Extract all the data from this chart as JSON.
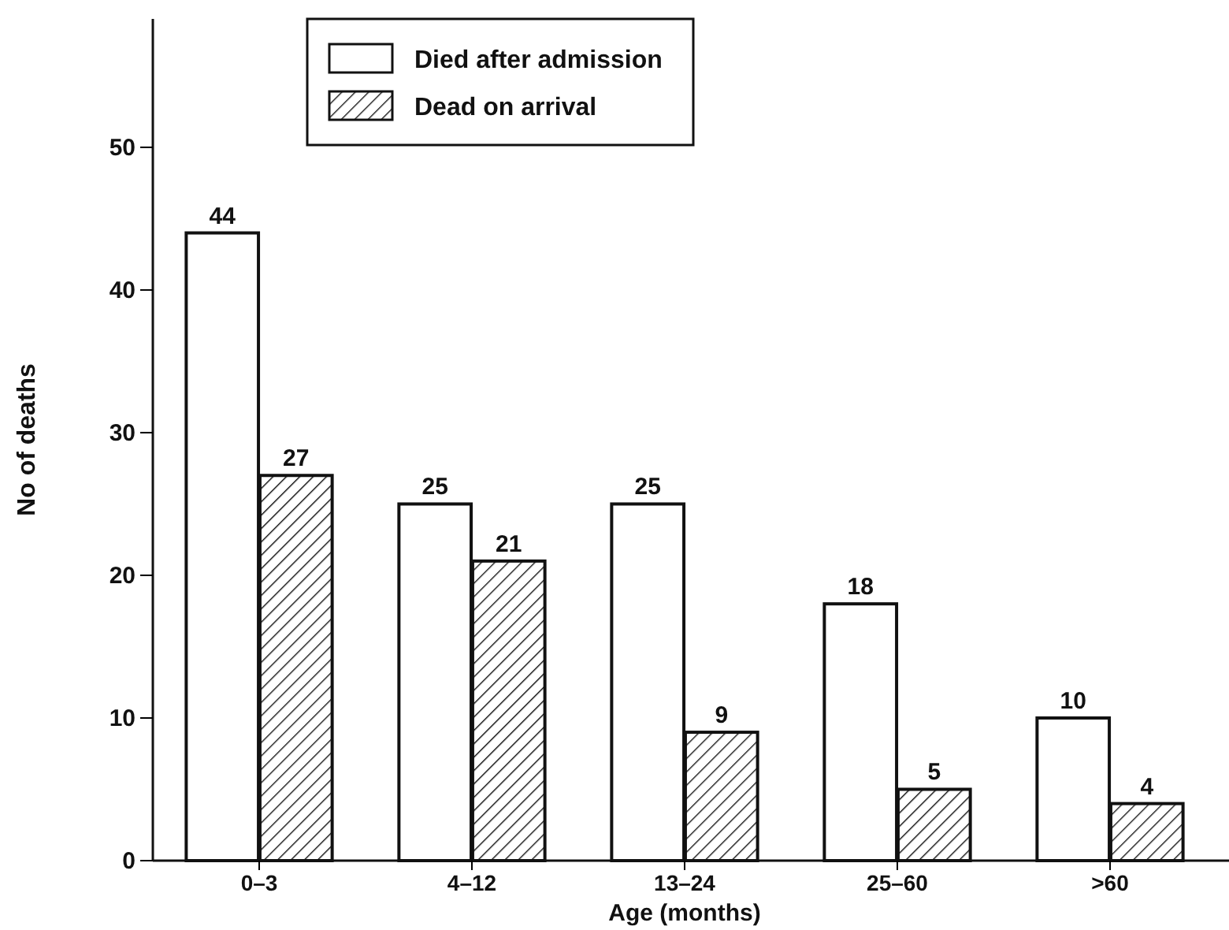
{
  "chart_data": {
    "type": "bar",
    "xlabel": "Age (months)",
    "ylabel": "No of deaths",
    "categories": [
      "0–3",
      "4–12",
      "13–24",
      "25–60",
      ">60"
    ],
    "series": [
      {
        "name": "Died after admission",
        "color": "#ffffff",
        "values": [
          44,
          25,
          25,
          18,
          10
        ]
      },
      {
        "name": "Dead on arrival",
        "color": "#111111",
        "values": [
          27,
          21,
          9,
          5,
          4
        ]
      }
    ],
    "ylim": [
      0,
      59
    ],
    "yticks": [
      0,
      10,
      20,
      30,
      40,
      50
    ],
    "grid": false,
    "legend": "top",
    "data_labels": true
  }
}
